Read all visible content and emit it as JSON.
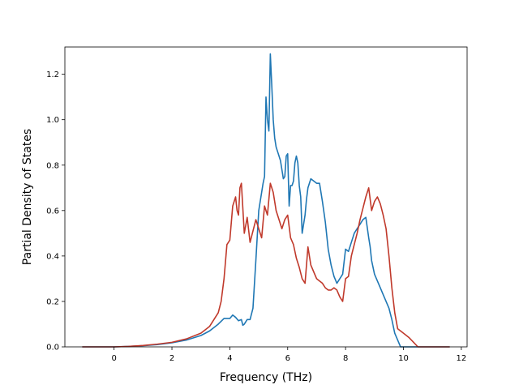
{
  "chart_data": {
    "type": "line",
    "title": "",
    "xlabel": "Frequency (THz)",
    "ylabel": "Partial Density of States",
    "xlim": [
      -1.7,
      12.2
    ],
    "ylim": [
      0,
      1.32
    ],
    "xticks": [
      0,
      2,
      4,
      6,
      8,
      10,
      12
    ],
    "xtick_labels": [
      "0",
      "2",
      "4",
      "6",
      "8",
      "10",
      "12"
    ],
    "yticks": [
      0.0,
      0.2,
      0.4,
      0.6,
      0.8,
      1.0,
      1.2
    ],
    "ytick_labels": [
      "0.0",
      "0.2",
      "0.4",
      "0.6",
      "0.8",
      "1.0",
      "1.2"
    ],
    "grid": false,
    "legend": "none",
    "series": [
      {
        "color": "#1f77b4",
        "x": [
          -1.1,
          0,
          0.5,
          1,
          1.5,
          2,
          2.5,
          3,
          3.3,
          3.6,
          3.8,
          3.9,
          4.0,
          4.1,
          4.2,
          4.3,
          4.4,
          4.45,
          4.5,
          4.6,
          4.7,
          4.8,
          4.9,
          5.0,
          5.1,
          5.15,
          5.2,
          5.25,
          5.3,
          5.35,
          5.4,
          5.45,
          5.5,
          5.55,
          5.6,
          5.65,
          5.7,
          5.75,
          5.8,
          5.85,
          5.9,
          5.95,
          6.0,
          6.05,
          6.1,
          6.15,
          6.2,
          6.25,
          6.3,
          6.35,
          6.4,
          6.45,
          6.5,
          6.55,
          6.6,
          6.65,
          6.7,
          6.8,
          6.9,
          7.0,
          7.1,
          7.2,
          7.3,
          7.4,
          7.5,
          7.6,
          7.7,
          7.8,
          7.9,
          8.0,
          8.1,
          8.2,
          8.3,
          8.4,
          8.5,
          8.6,
          8.7,
          8.8,
          8.85,
          8.9,
          9.0,
          9.1,
          9.2,
          9.3,
          9.4,
          9.5,
          9.6,
          9.7,
          9.8,
          9.9,
          10.0,
          10.5,
          11.6
        ],
        "y": [
          0,
          0,
          0.002,
          0.005,
          0.01,
          0.018,
          0.03,
          0.05,
          0.07,
          0.1,
          0.125,
          0.125,
          0.125,
          0.14,
          0.13,
          0.115,
          0.12,
          0.095,
          0.1,
          0.12,
          0.12,
          0.17,
          0.38,
          0.6,
          0.68,
          0.72,
          0.75,
          1.1,
          1.0,
          0.95,
          1.29,
          1.15,
          1.0,
          0.92,
          0.88,
          0.86,
          0.84,
          0.82,
          0.78,
          0.74,
          0.75,
          0.84,
          0.85,
          0.62,
          0.71,
          0.71,
          0.73,
          0.81,
          0.84,
          0.81,
          0.71,
          0.66,
          0.5,
          0.54,
          0.58,
          0.65,
          0.7,
          0.74,
          0.73,
          0.72,
          0.72,
          0.64,
          0.55,
          0.43,
          0.36,
          0.31,
          0.28,
          0.3,
          0.32,
          0.43,
          0.42,
          0.46,
          0.5,
          0.52,
          0.54,
          0.56,
          0.57,
          0.48,
          0.44,
          0.38,
          0.32,
          0.29,
          0.26,
          0.23,
          0.2,
          0.17,
          0.12,
          0.06,
          0.03,
          0.0,
          0,
          0,
          0
        ]
      },
      {
        "color": "#c0392b",
        "x": [
          -1.1,
          0,
          0.5,
          1,
          1.5,
          2,
          2.5,
          3,
          3.3,
          3.6,
          3.7,
          3.8,
          3.9,
          4.0,
          4.1,
          4.2,
          4.25,
          4.3,
          4.35,
          4.4,
          4.5,
          4.6,
          4.7,
          4.8,
          4.9,
          5.0,
          5.1,
          5.2,
          5.3,
          5.4,
          5.5,
          5.6,
          5.7,
          5.8,
          5.9,
          6.0,
          6.1,
          6.2,
          6.3,
          6.4,
          6.5,
          6.6,
          6.7,
          6.8,
          6.9,
          7.0,
          7.1,
          7.2,
          7.3,
          7.4,
          7.5,
          7.6,
          7.7,
          7.8,
          7.9,
          8.0,
          8.1,
          8.2,
          8.3,
          8.4,
          8.5,
          8.6,
          8.7,
          8.8,
          8.9,
          9.0,
          9.1,
          9.2,
          9.3,
          9.4,
          9.5,
          9.6,
          9.7,
          9.8,
          10.0,
          10.2,
          10.5,
          11.6
        ],
        "y": [
          0,
          0,
          0.002,
          0.006,
          0.012,
          0.02,
          0.035,
          0.06,
          0.09,
          0.15,
          0.2,
          0.3,
          0.45,
          0.47,
          0.62,
          0.66,
          0.6,
          0.58,
          0.7,
          0.72,
          0.5,
          0.57,
          0.46,
          0.51,
          0.56,
          0.52,
          0.48,
          0.62,
          0.58,
          0.72,
          0.68,
          0.6,
          0.56,
          0.52,
          0.56,
          0.58,
          0.48,
          0.45,
          0.39,
          0.35,
          0.3,
          0.28,
          0.44,
          0.36,
          0.33,
          0.3,
          0.29,
          0.28,
          0.26,
          0.25,
          0.25,
          0.26,
          0.25,
          0.22,
          0.2,
          0.3,
          0.31,
          0.4,
          0.45,
          0.5,
          0.56,
          0.61,
          0.66,
          0.7,
          0.6,
          0.64,
          0.66,
          0.63,
          0.58,
          0.52,
          0.4,
          0.26,
          0.15,
          0.08,
          0.06,
          0.04,
          0.0,
          0
        ]
      }
    ]
  }
}
